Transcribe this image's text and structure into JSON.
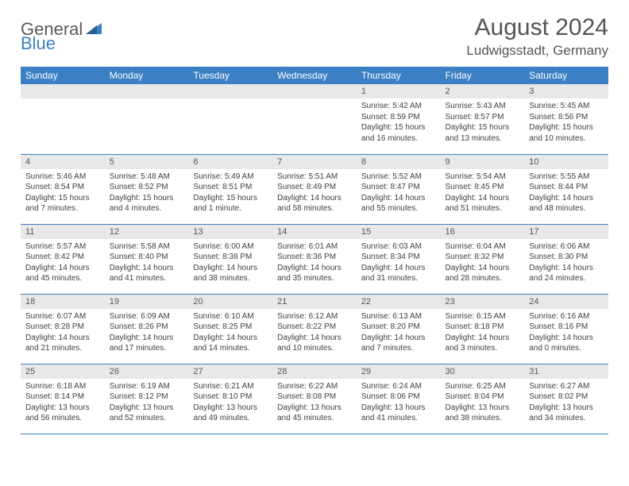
{
  "logo": {
    "text1": "General",
    "text2": "Blue"
  },
  "title": "August 2024",
  "location": "Ludwigsstadt, Germany",
  "colors": {
    "header_bg": "#3b7fc4",
    "header_text": "#ffffff",
    "daynum_bg": "#e8e8e8",
    "border": "#3b7fc4",
    "body_bg": "#ffffff",
    "text": "#404040"
  },
  "typography": {
    "title_fontsize": 30,
    "location_fontsize": 17,
    "dayheader_fontsize": 12,
    "daynum_fontsize": 11,
    "body_fontsize": 10
  },
  "day_headers": [
    "Sunday",
    "Monday",
    "Tuesday",
    "Wednesday",
    "Thursday",
    "Friday",
    "Saturday"
  ],
  "weeks": [
    [
      null,
      null,
      null,
      null,
      {
        "n": "1",
        "sunrise": "Sunrise: 5:42 AM",
        "sunset": "Sunset: 8:59 PM",
        "daylight": "Daylight: 15 hours and 16 minutes."
      },
      {
        "n": "2",
        "sunrise": "Sunrise: 5:43 AM",
        "sunset": "Sunset: 8:57 PM",
        "daylight": "Daylight: 15 hours and 13 minutes."
      },
      {
        "n": "3",
        "sunrise": "Sunrise: 5:45 AM",
        "sunset": "Sunset: 8:56 PM",
        "daylight": "Daylight: 15 hours and 10 minutes."
      }
    ],
    [
      {
        "n": "4",
        "sunrise": "Sunrise: 5:46 AM",
        "sunset": "Sunset: 8:54 PM",
        "daylight": "Daylight: 15 hours and 7 minutes."
      },
      {
        "n": "5",
        "sunrise": "Sunrise: 5:48 AM",
        "sunset": "Sunset: 8:52 PM",
        "daylight": "Daylight: 15 hours and 4 minutes."
      },
      {
        "n": "6",
        "sunrise": "Sunrise: 5:49 AM",
        "sunset": "Sunset: 8:51 PM",
        "daylight": "Daylight: 15 hours and 1 minute."
      },
      {
        "n": "7",
        "sunrise": "Sunrise: 5:51 AM",
        "sunset": "Sunset: 8:49 PM",
        "daylight": "Daylight: 14 hours and 58 minutes."
      },
      {
        "n": "8",
        "sunrise": "Sunrise: 5:52 AM",
        "sunset": "Sunset: 8:47 PM",
        "daylight": "Daylight: 14 hours and 55 minutes."
      },
      {
        "n": "9",
        "sunrise": "Sunrise: 5:54 AM",
        "sunset": "Sunset: 8:45 PM",
        "daylight": "Daylight: 14 hours and 51 minutes."
      },
      {
        "n": "10",
        "sunrise": "Sunrise: 5:55 AM",
        "sunset": "Sunset: 8:44 PM",
        "daylight": "Daylight: 14 hours and 48 minutes."
      }
    ],
    [
      {
        "n": "11",
        "sunrise": "Sunrise: 5:57 AM",
        "sunset": "Sunset: 8:42 PM",
        "daylight": "Daylight: 14 hours and 45 minutes."
      },
      {
        "n": "12",
        "sunrise": "Sunrise: 5:58 AM",
        "sunset": "Sunset: 8:40 PM",
        "daylight": "Daylight: 14 hours and 41 minutes."
      },
      {
        "n": "13",
        "sunrise": "Sunrise: 6:00 AM",
        "sunset": "Sunset: 8:38 PM",
        "daylight": "Daylight: 14 hours and 38 minutes."
      },
      {
        "n": "14",
        "sunrise": "Sunrise: 6:01 AM",
        "sunset": "Sunset: 8:36 PM",
        "daylight": "Daylight: 14 hours and 35 minutes."
      },
      {
        "n": "15",
        "sunrise": "Sunrise: 6:03 AM",
        "sunset": "Sunset: 8:34 PM",
        "daylight": "Daylight: 14 hours and 31 minutes."
      },
      {
        "n": "16",
        "sunrise": "Sunrise: 6:04 AM",
        "sunset": "Sunset: 8:32 PM",
        "daylight": "Daylight: 14 hours and 28 minutes."
      },
      {
        "n": "17",
        "sunrise": "Sunrise: 6:06 AM",
        "sunset": "Sunset: 8:30 PM",
        "daylight": "Daylight: 14 hours and 24 minutes."
      }
    ],
    [
      {
        "n": "18",
        "sunrise": "Sunrise: 6:07 AM",
        "sunset": "Sunset: 8:28 PM",
        "daylight": "Daylight: 14 hours and 21 minutes."
      },
      {
        "n": "19",
        "sunrise": "Sunrise: 6:09 AM",
        "sunset": "Sunset: 8:26 PM",
        "daylight": "Daylight: 14 hours and 17 minutes."
      },
      {
        "n": "20",
        "sunrise": "Sunrise: 6:10 AM",
        "sunset": "Sunset: 8:25 PM",
        "daylight": "Daylight: 14 hours and 14 minutes."
      },
      {
        "n": "21",
        "sunrise": "Sunrise: 6:12 AM",
        "sunset": "Sunset: 8:22 PM",
        "daylight": "Daylight: 14 hours and 10 minutes."
      },
      {
        "n": "22",
        "sunrise": "Sunrise: 6:13 AM",
        "sunset": "Sunset: 8:20 PM",
        "daylight": "Daylight: 14 hours and 7 minutes."
      },
      {
        "n": "23",
        "sunrise": "Sunrise: 6:15 AM",
        "sunset": "Sunset: 8:18 PM",
        "daylight": "Daylight: 14 hours and 3 minutes."
      },
      {
        "n": "24",
        "sunrise": "Sunrise: 6:16 AM",
        "sunset": "Sunset: 8:16 PM",
        "daylight": "Daylight: 14 hours and 0 minutes."
      }
    ],
    [
      {
        "n": "25",
        "sunrise": "Sunrise: 6:18 AM",
        "sunset": "Sunset: 8:14 PM",
        "daylight": "Daylight: 13 hours and 56 minutes."
      },
      {
        "n": "26",
        "sunrise": "Sunrise: 6:19 AM",
        "sunset": "Sunset: 8:12 PM",
        "daylight": "Daylight: 13 hours and 52 minutes."
      },
      {
        "n": "27",
        "sunrise": "Sunrise: 6:21 AM",
        "sunset": "Sunset: 8:10 PM",
        "daylight": "Daylight: 13 hours and 49 minutes."
      },
      {
        "n": "28",
        "sunrise": "Sunrise: 6:22 AM",
        "sunset": "Sunset: 8:08 PM",
        "daylight": "Daylight: 13 hours and 45 minutes."
      },
      {
        "n": "29",
        "sunrise": "Sunrise: 6:24 AM",
        "sunset": "Sunset: 8:06 PM",
        "daylight": "Daylight: 13 hours and 41 minutes."
      },
      {
        "n": "30",
        "sunrise": "Sunrise: 6:25 AM",
        "sunset": "Sunset: 8:04 PM",
        "daylight": "Daylight: 13 hours and 38 minutes."
      },
      {
        "n": "31",
        "sunrise": "Sunrise: 6:27 AM",
        "sunset": "Sunset: 8:02 PM",
        "daylight": "Daylight: 13 hours and 34 minutes."
      }
    ]
  ]
}
